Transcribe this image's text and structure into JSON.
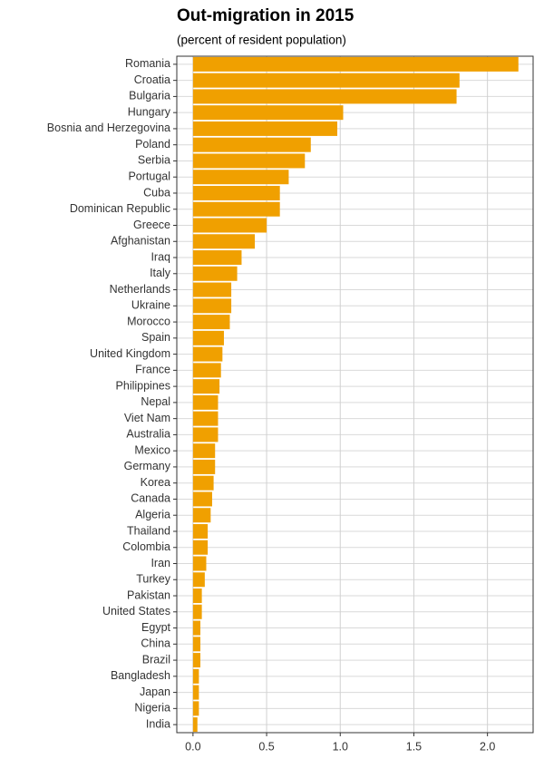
{
  "chart_data": {
    "type": "barh",
    "title": "Out-migration in 2015",
    "subtitle": "(percent of resident population)",
    "categories": [
      "Romania",
      "Croatia",
      "Bulgaria",
      "Hungary",
      "Bosnia and Herzegovina",
      "Poland",
      "Serbia",
      "Portugal",
      "Cuba",
      "Dominican Republic",
      "Greece",
      "Afghanistan",
      "Iraq",
      "Italy",
      "Netherlands",
      "Ukraine",
      "Morocco",
      "Spain",
      "United Kingdom",
      "France",
      "Philippines",
      "Nepal",
      "Viet Nam",
      "Australia",
      "Mexico",
      "Germany",
      "Korea",
      "Canada",
      "Algeria",
      "Thailand",
      "Colombia",
      "Iran",
      "Turkey",
      "Pakistan",
      "United States",
      "Egypt",
      "China",
      "Brazil",
      "Bangladesh",
      "Japan",
      "Nigeria",
      "India"
    ],
    "values": [
      2.21,
      1.81,
      1.79,
      1.02,
      0.98,
      0.8,
      0.76,
      0.65,
      0.59,
      0.59,
      0.5,
      0.42,
      0.33,
      0.3,
      0.26,
      0.26,
      0.25,
      0.21,
      0.2,
      0.19,
      0.18,
      0.17,
      0.17,
      0.17,
      0.15,
      0.15,
      0.14,
      0.13,
      0.12,
      0.1,
      0.1,
      0.09,
      0.08,
      0.06,
      0.06,
      0.05,
      0.05,
      0.05,
      0.04,
      0.04,
      0.04,
      0.03
    ],
    "color": "#f0a000",
    "xlim": [
      -0.11,
      2.31
    ],
    "xticks": [
      {
        "value": 0,
        "label": "0.0"
      },
      0.5,
      {
        "value": 1,
        "label": "1.0"
      },
      1.5,
      {
        "value": 2,
        "label": "2.0"
      }
    ],
    "grid": true
  }
}
